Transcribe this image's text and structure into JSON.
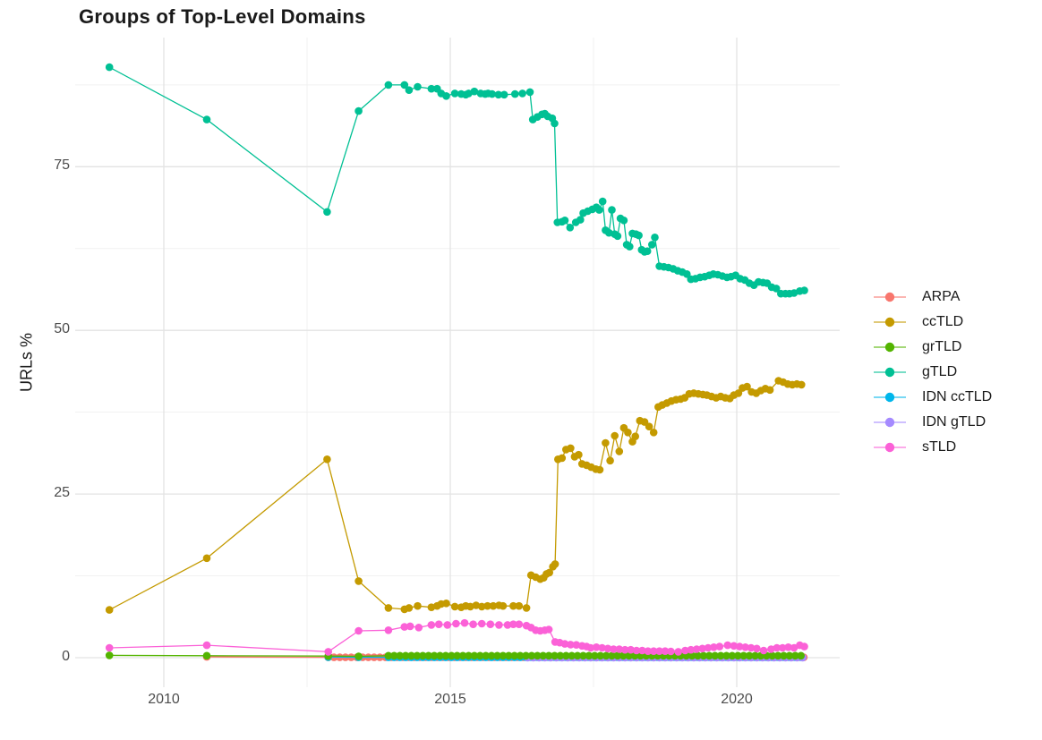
{
  "title": "Groups of Top-Level Domains",
  "chart_data": {
    "type": "line",
    "title": "Groups of Top-Level Domains",
    "xlabel": "",
    "ylabel": "URLs %",
    "grid": true,
    "legend_position": "right",
    "xlim": [
      2008.45,
      2021.8
    ],
    "ylim": [
      -4.6,
      94.8
    ],
    "x_major_ticks": [
      2010,
      2015,
      2020
    ],
    "x_tick_labels": [
      "2010",
      "2015",
      "2020"
    ],
    "x_minor_ticks": [
      2012.5,
      2017.5
    ],
    "y_major_ticks": [
      0,
      25,
      50,
      75
    ],
    "y_tick_labels": [
      "0",
      "25",
      "50",
      "75"
    ],
    "y_minor_ticks": [
      12.5,
      37.5,
      62.5,
      87.5
    ],
    "series": [
      {
        "name": "ARPA",
        "color": "#F8766D",
        "points": [
          [
            2010.75,
            0.12
          ]
        ],
        "points_spec": {
          "start": 2012.87,
          "end": 2021.18,
          "step": 0.1,
          "value": 0.05
        }
      },
      {
        "name": "IDN ccTLD",
        "color": "#00B6EB",
        "points": [
          [
            2012.87,
            0.08
          ],
          [
            2013.4,
            0.05
          ]
        ],
        "points_spec": {
          "start": 2013.92,
          "end": 2021.18,
          "step": 0.1,
          "value": 0.05
        }
      },
      {
        "name": "IDN gTLD",
        "color": "#A58AFF",
        "points": [],
        "points_spec": {
          "start": 2016.35,
          "end": 2021.18,
          "step": 0.1,
          "value": 0.02
        }
      },
      {
        "name": "grTLD",
        "color": "#53B400",
        "points": [
          [
            2009.05,
            0.35
          ],
          [
            2010.75,
            0.3
          ],
          [
            2012.87,
            0.25
          ],
          [
            2013.4,
            0.2
          ]
        ],
        "points_spec": {
          "start": 2013.92,
          "end": 2021.18,
          "step": 0.1,
          "value": 0.3
        }
      },
      {
        "name": "ccTLD",
        "color": "#C49A00",
        "points": [
          [
            2009.05,
            7.3
          ],
          [
            2010.75,
            15.2
          ],
          [
            2012.85,
            30.3
          ],
          [
            2013.4,
            11.7
          ],
          [
            2013.92,
            7.6
          ],
          [
            2014.2,
            7.4
          ],
          [
            2014.28,
            7.6
          ],
          [
            2014.43,
            7.9
          ],
          [
            2014.67,
            7.7
          ],
          [
            2014.77,
            7.9
          ],
          [
            2014.84,
            8.2
          ],
          [
            2014.93,
            8.3
          ],
          [
            2015.08,
            7.8
          ],
          [
            2015.19,
            7.7
          ],
          [
            2015.27,
            7.9
          ],
          [
            2015.35,
            7.8
          ],
          [
            2015.45,
            8.0
          ],
          [
            2015.55,
            7.8
          ],
          [
            2015.65,
            7.9
          ],
          [
            2015.75,
            7.9
          ],
          [
            2015.85,
            8.0
          ],
          [
            2015.92,
            7.9
          ],
          [
            2016.1,
            7.9
          ],
          [
            2016.2,
            7.9
          ],
          [
            2016.33,
            7.6
          ],
          [
            2016.41,
            12.6
          ],
          [
            2016.49,
            12.3
          ],
          [
            2016.57,
            12.0
          ],
          [
            2016.63,
            12.2
          ],
          [
            2016.68,
            12.8
          ],
          [
            2016.73,
            13.0
          ],
          [
            2016.79,
            13.9
          ],
          [
            2016.83,
            14.3
          ],
          [
            2016.88,
            30.3
          ],
          [
            2016.95,
            30.5
          ],
          [
            2017.02,
            31.8
          ],
          [
            2017.1,
            32.0
          ],
          [
            2017.17,
            30.7
          ],
          [
            2017.24,
            31.0
          ],
          [
            2017.3,
            29.6
          ],
          [
            2017.38,
            29.4
          ],
          [
            2017.46,
            29.1
          ],
          [
            2017.54,
            28.8
          ],
          [
            2017.61,
            28.7
          ],
          [
            2017.71,
            32.8
          ],
          [
            2017.79,
            30.1
          ],
          [
            2017.87,
            33.9
          ],
          [
            2017.95,
            31.5
          ],
          [
            2018.03,
            35.1
          ],
          [
            2018.1,
            34.4
          ],
          [
            2018.18,
            33.0
          ],
          [
            2018.23,
            33.8
          ],
          [
            2018.31,
            36.2
          ],
          [
            2018.39,
            36.0
          ],
          [
            2018.47,
            35.3
          ],
          [
            2018.55,
            34.4
          ],
          [
            2018.63,
            38.3
          ],
          [
            2018.7,
            38.6
          ],
          [
            2018.78,
            38.9
          ],
          [
            2018.86,
            39.2
          ],
          [
            2018.94,
            39.4
          ],
          [
            2019.02,
            39.5
          ],
          [
            2019.09,
            39.7
          ],
          [
            2019.17,
            40.3
          ],
          [
            2019.25,
            40.4
          ],
          [
            2019.33,
            40.3
          ],
          [
            2019.41,
            40.2
          ],
          [
            2019.48,
            40.1
          ],
          [
            2019.56,
            39.9
          ],
          [
            2019.64,
            39.7
          ],
          [
            2019.72,
            39.9
          ],
          [
            2019.8,
            39.7
          ],
          [
            2019.88,
            39.6
          ],
          [
            2019.95,
            40.1
          ],
          [
            2020.03,
            40.4
          ],
          [
            2020.1,
            41.2
          ],
          [
            2020.18,
            41.4
          ],
          [
            2020.26,
            40.6
          ],
          [
            2020.34,
            40.4
          ],
          [
            2020.42,
            40.8
          ],
          [
            2020.5,
            41.1
          ],
          [
            2020.58,
            40.9
          ],
          [
            2020.73,
            42.3
          ],
          [
            2020.81,
            42.1
          ],
          [
            2020.89,
            41.8
          ],
          [
            2020.97,
            41.7
          ],
          [
            2021.05,
            41.8
          ],
          [
            2021.13,
            41.7
          ]
        ]
      },
      {
        "name": "gTLD",
        "color": "#00C094",
        "points": [
          [
            2009.05,
            90.2
          ],
          [
            2010.75,
            82.2
          ],
          [
            2012.85,
            68.1
          ],
          [
            2013.4,
            83.5
          ],
          [
            2013.92,
            87.5
          ],
          [
            2014.2,
            87.5
          ],
          [
            2014.28,
            86.7
          ],
          [
            2014.43,
            87.2
          ],
          [
            2014.67,
            86.9
          ],
          [
            2014.77,
            86.9
          ],
          [
            2014.84,
            86.2
          ],
          [
            2014.93,
            85.8
          ],
          [
            2015.08,
            86.2
          ],
          [
            2015.19,
            86.1
          ],
          [
            2015.27,
            86.0
          ],
          [
            2015.32,
            86.2
          ],
          [
            2015.42,
            86.5
          ],
          [
            2015.53,
            86.2
          ],
          [
            2015.61,
            86.1
          ],
          [
            2015.66,
            86.2
          ],
          [
            2015.73,
            86.1
          ],
          [
            2015.84,
            86.0
          ],
          [
            2015.94,
            86.0
          ],
          [
            2016.13,
            86.1
          ],
          [
            2016.26,
            86.2
          ],
          [
            2016.39,
            86.4
          ],
          [
            2016.44,
            82.2
          ],
          [
            2016.52,
            82.6
          ],
          [
            2016.6,
            83.0
          ],
          [
            2016.65,
            83.1
          ],
          [
            2016.7,
            82.7
          ],
          [
            2016.78,
            82.4
          ],
          [
            2016.82,
            81.6
          ],
          [
            2016.87,
            66.5
          ],
          [
            2016.95,
            66.6
          ],
          [
            2017.0,
            66.8
          ],
          [
            2017.09,
            65.7
          ],
          [
            2017.19,
            66.5
          ],
          [
            2017.27,
            66.9
          ],
          [
            2017.32,
            67.9
          ],
          [
            2017.4,
            68.2
          ],
          [
            2017.48,
            68.5
          ],
          [
            2017.55,
            68.8
          ],
          [
            2017.6,
            68.4
          ],
          [
            2017.66,
            69.7
          ],
          [
            2017.71,
            65.3
          ],
          [
            2017.77,
            64.9
          ],
          [
            2017.82,
            68.4
          ],
          [
            2017.87,
            64.7
          ],
          [
            2017.92,
            64.4
          ],
          [
            2017.97,
            67.1
          ],
          [
            2018.03,
            66.8
          ],
          [
            2018.08,
            63.1
          ],
          [
            2018.13,
            62.8
          ],
          [
            2018.18,
            64.8
          ],
          [
            2018.24,
            64.7
          ],
          [
            2018.29,
            64.5
          ],
          [
            2018.34,
            62.3
          ],
          [
            2018.39,
            62.0
          ],
          [
            2018.44,
            62.1
          ],
          [
            2018.52,
            63.1
          ],
          [
            2018.57,
            64.2
          ],
          [
            2018.65,
            59.8
          ],
          [
            2018.73,
            59.7
          ],
          [
            2018.81,
            59.6
          ],
          [
            2018.89,
            59.4
          ],
          [
            2018.97,
            59.1
          ],
          [
            2019.05,
            58.9
          ],
          [
            2019.13,
            58.6
          ],
          [
            2019.2,
            57.8
          ],
          [
            2019.28,
            57.9
          ],
          [
            2019.36,
            58.1
          ],
          [
            2019.44,
            58.2
          ],
          [
            2019.52,
            58.4
          ],
          [
            2019.59,
            58.6
          ],
          [
            2019.67,
            58.5
          ],
          [
            2019.75,
            58.3
          ],
          [
            2019.83,
            58.1
          ],
          [
            2019.9,
            58.2
          ],
          [
            2019.98,
            58.4
          ],
          [
            2020.06,
            57.9
          ],
          [
            2020.14,
            57.7
          ],
          [
            2020.22,
            57.2
          ],
          [
            2020.3,
            56.9
          ],
          [
            2020.38,
            57.4
          ],
          [
            2020.46,
            57.3
          ],
          [
            2020.53,
            57.2
          ],
          [
            2020.61,
            56.6
          ],
          [
            2020.69,
            56.4
          ],
          [
            2020.77,
            55.6
          ],
          [
            2020.85,
            55.6
          ],
          [
            2020.92,
            55.6
          ],
          [
            2021.0,
            55.7
          ],
          [
            2021.1,
            56.0
          ],
          [
            2021.18,
            56.1
          ]
        ]
      },
      {
        "name": "sTLD",
        "color": "#FB61D7",
        "points": [
          [
            2009.05,
            1.5
          ],
          [
            2010.75,
            1.9
          ],
          [
            2012.87,
            0.9
          ],
          [
            2013.4,
            4.1
          ],
          [
            2013.92,
            4.2
          ],
          [
            2014.2,
            4.7
          ],
          [
            2014.3,
            4.8
          ],
          [
            2014.45,
            4.6
          ],
          [
            2014.67,
            5.0
          ],
          [
            2014.8,
            5.1
          ],
          [
            2014.95,
            5.0
          ],
          [
            2015.1,
            5.2
          ],
          [
            2015.25,
            5.3
          ],
          [
            2015.4,
            5.1
          ],
          [
            2015.55,
            5.2
          ],
          [
            2015.7,
            5.1
          ],
          [
            2015.85,
            5.0
          ],
          [
            2016.0,
            5.0
          ],
          [
            2016.1,
            5.1
          ],
          [
            2016.2,
            5.1
          ],
          [
            2016.33,
            4.9
          ],
          [
            2016.41,
            4.6
          ],
          [
            2016.49,
            4.2
          ],
          [
            2016.57,
            4.1
          ],
          [
            2016.65,
            4.2
          ],
          [
            2016.72,
            4.3
          ],
          [
            2016.83,
            2.4
          ],
          [
            2016.91,
            2.3
          ],
          [
            2017.0,
            2.1
          ],
          [
            2017.1,
            2.0
          ],
          [
            2017.2,
            1.95
          ],
          [
            2017.3,
            1.8
          ],
          [
            2017.38,
            1.7
          ],
          [
            2017.45,
            1.5
          ],
          [
            2017.55,
            1.6
          ],
          [
            2017.65,
            1.5
          ],
          [
            2017.75,
            1.4
          ],
          [
            2017.85,
            1.3
          ],
          [
            2017.95,
            1.3
          ],
          [
            2018.05,
            1.2
          ],
          [
            2018.15,
            1.2
          ],
          [
            2018.25,
            1.1
          ],
          [
            2018.35,
            1.1
          ],
          [
            2018.45,
            1.0
          ],
          [
            2018.55,
            1.0
          ],
          [
            2018.65,
            1.0
          ],
          [
            2018.75,
            1.0
          ],
          [
            2018.85,
            0.95
          ],
          [
            2018.98,
            0.9
          ],
          [
            2019.1,
            1.1
          ],
          [
            2019.2,
            1.2
          ],
          [
            2019.3,
            1.3
          ],
          [
            2019.4,
            1.4
          ],
          [
            2019.5,
            1.5
          ],
          [
            2019.6,
            1.6
          ],
          [
            2019.7,
            1.7
          ],
          [
            2019.84,
            1.9
          ],
          [
            2019.95,
            1.8
          ],
          [
            2020.05,
            1.7
          ],
          [
            2020.15,
            1.6
          ],
          [
            2020.25,
            1.5
          ],
          [
            2020.35,
            1.4
          ],
          [
            2020.47,
            1.1
          ],
          [
            2020.6,
            1.3
          ],
          [
            2020.7,
            1.5
          ],
          [
            2020.8,
            1.5
          ],
          [
            2020.9,
            1.6
          ],
          [
            2021.0,
            1.5
          ],
          [
            2021.1,
            1.9
          ],
          [
            2021.18,
            1.7
          ]
        ]
      }
    ],
    "legend_order": [
      "ARPA",
      "ccTLD",
      "grTLD",
      "gTLD",
      "IDN ccTLD",
      "IDN gTLD",
      "sTLD"
    ]
  },
  "style_colors": {
    "background": "#ffffff",
    "grid_major": "#e3e3e3",
    "grid_minor": "#f1f1f1",
    "tick_text": "#4d4d4d",
    "title_text": "#1a1a1a"
  }
}
